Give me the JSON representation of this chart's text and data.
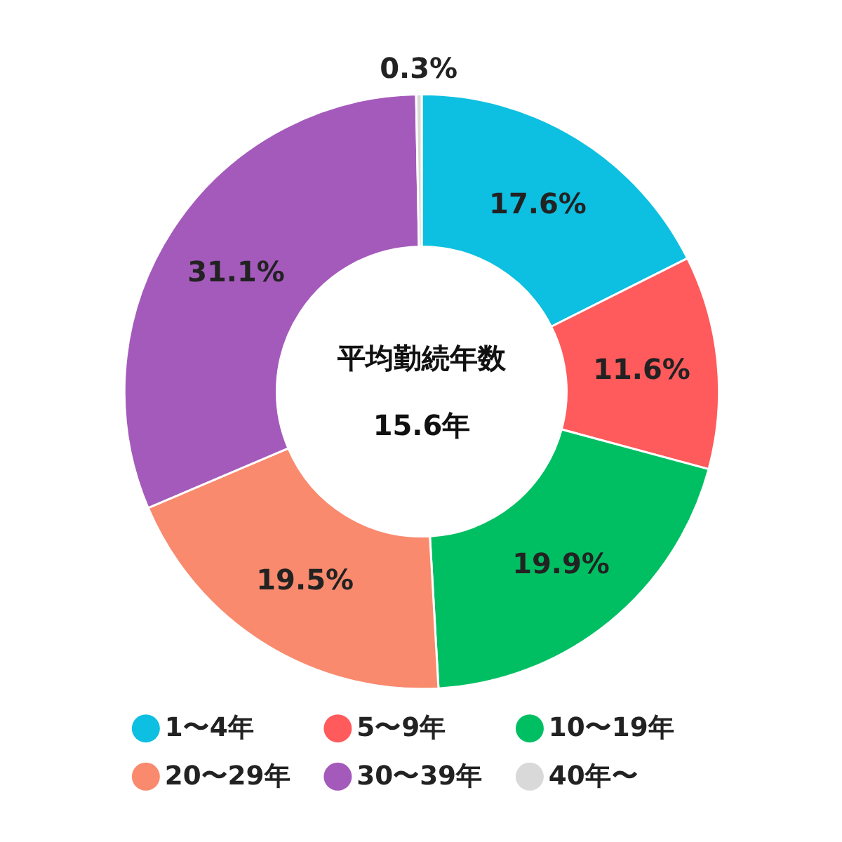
{
  "chart_data": {
    "type": "donut",
    "categories": [
      "1〜4年",
      "5〜9年",
      "10〜19年",
      "20〜29年",
      "30〜39年",
      "40年〜"
    ],
    "values": [
      17.6,
      11.6,
      19.9,
      19.5,
      31.1,
      0.3
    ],
    "value_labels": [
      "17.6%",
      "11.6%",
      "19.9%",
      "19.5%",
      "31.1%",
      "0.3%"
    ],
    "colors": [
      "#0dbfe0",
      "#ff5a5c",
      "#00bf63",
      "#f98a6e",
      "#a45abb",
      "#d9d9d9"
    ],
    "annotations": [
      "平均勤続年数",
      "15.6年"
    ],
    "legend": "bottom"
  }
}
